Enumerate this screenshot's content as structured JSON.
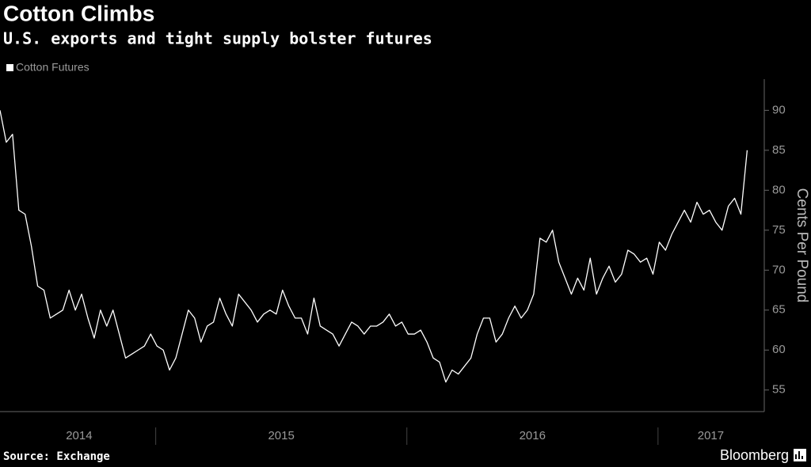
{
  "chart_data": {
    "type": "line",
    "title": "Cotton Climbs",
    "subtitle": "U.S. exports and tight supply bolster futures",
    "y_axis_label": "Cents Per Pound",
    "source": "Source: Exchange",
    "brand": "Bloomberg",
    "ylim": [
      52.3,
      93.9
    ],
    "yticks": [
      55,
      60,
      65,
      70,
      75,
      80,
      85,
      90
    ],
    "xlim": [
      2014.38,
      2017.36
    ],
    "xticks": [
      {
        "value": 2014.695,
        "label": "2014"
      },
      {
        "value": 2015.5,
        "label": "2015"
      },
      {
        "value": 2016.5,
        "label": "2016"
      },
      {
        "value": 2017.21,
        "label": "2017"
      }
    ],
    "year_boundaries": [
      2015,
      2016,
      2017
    ],
    "series": [
      {
        "name": "Cotton Futures",
        "color": "#ffffff",
        "x": [
          2014.38,
          2014.405,
          2014.43,
          2014.455,
          2014.48,
          2014.505,
          2014.53,
          2014.555,
          2014.58,
          2014.605,
          2014.63,
          2014.655,
          2014.68,
          2014.705,
          2014.73,
          2014.755,
          2014.78,
          2014.805,
          2014.83,
          2014.855,
          2014.88,
          2014.905,
          2014.93,
          2014.955,
          2014.98,
          2015.005,
          2015.03,
          2015.055,
          2015.08,
          2015.105,
          2015.13,
          2015.155,
          2015.18,
          2015.205,
          2015.23,
          2015.255,
          2015.28,
          2015.305,
          2015.33,
          2015.355,
          2015.38,
          2015.405,
          2015.43,
          2015.455,
          2015.48,
          2015.505,
          2015.53,
          2015.555,
          2015.58,
          2015.605,
          2015.63,
          2015.655,
          2015.68,
          2015.705,
          2015.73,
          2015.755,
          2015.78,
          2015.805,
          2015.83,
          2015.855,
          2015.88,
          2015.905,
          2015.93,
          2015.955,
          2015.98,
          2016.005,
          2016.03,
          2016.055,
          2016.08,
          2016.105,
          2016.13,
          2016.155,
          2016.18,
          2016.205,
          2016.23,
          2016.255,
          2016.28,
          2016.305,
          2016.33,
          2016.355,
          2016.38,
          2016.405,
          2016.43,
          2016.455,
          2016.48,
          2016.505,
          2016.53,
          2016.555,
          2016.58,
          2016.605,
          2016.63,
          2016.655,
          2016.68,
          2016.705,
          2016.73,
          2016.755,
          2016.78,
          2016.805,
          2016.83,
          2016.855,
          2016.88,
          2016.905,
          2016.93,
          2016.955,
          2016.98,
          2017.005,
          2017.03,
          2017.055,
          2017.08,
          2017.105,
          2017.13,
          2017.155,
          2017.18,
          2017.205,
          2017.23,
          2017.255,
          2017.28,
          2017.305,
          2017.33,
          2017.355
        ],
        "values": [
          90,
          86,
          87,
          77.5,
          77,
          73,
          68,
          67.5,
          64,
          64.5,
          65,
          67.5,
          65,
          67,
          64,
          61.5,
          65,
          63,
          65,
          62,
          59,
          59.5,
          60,
          60.5,
          62,
          60.5,
          60,
          57.5,
          59,
          62,
          65,
          64,
          61,
          63,
          63.5,
          66.5,
          64.5,
          63,
          67,
          66,
          65,
          63.5,
          64.5,
          65,
          64.5,
          67.5,
          65.5,
          64,
          64,
          62,
          66.5,
          63,
          62.5,
          62,
          60.5,
          62,
          63.5,
          63,
          62,
          63,
          63,
          63.5,
          64.5,
          63,
          63.5,
          62,
          62,
          62.5,
          61,
          59,
          58.5,
          56,
          57.5,
          57,
          58,
          59,
          62,
          64,
          64,
          61,
          62,
          64,
          65.5,
          64,
          65,
          67,
          74,
          73.5,
          75,
          71,
          69,
          67,
          69,
          67.5,
          71.5,
          67,
          69,
          70.5,
          68.5,
          69.5,
          72.5,
          72,
          71,
          71.5,
          69.5,
          73.5,
          72.5,
          74.5,
          76,
          77.5,
          76,
          78.5,
          77,
          77.5,
          76,
          75,
          78,
          79,
          77,
          85
        ]
      }
    ]
  }
}
